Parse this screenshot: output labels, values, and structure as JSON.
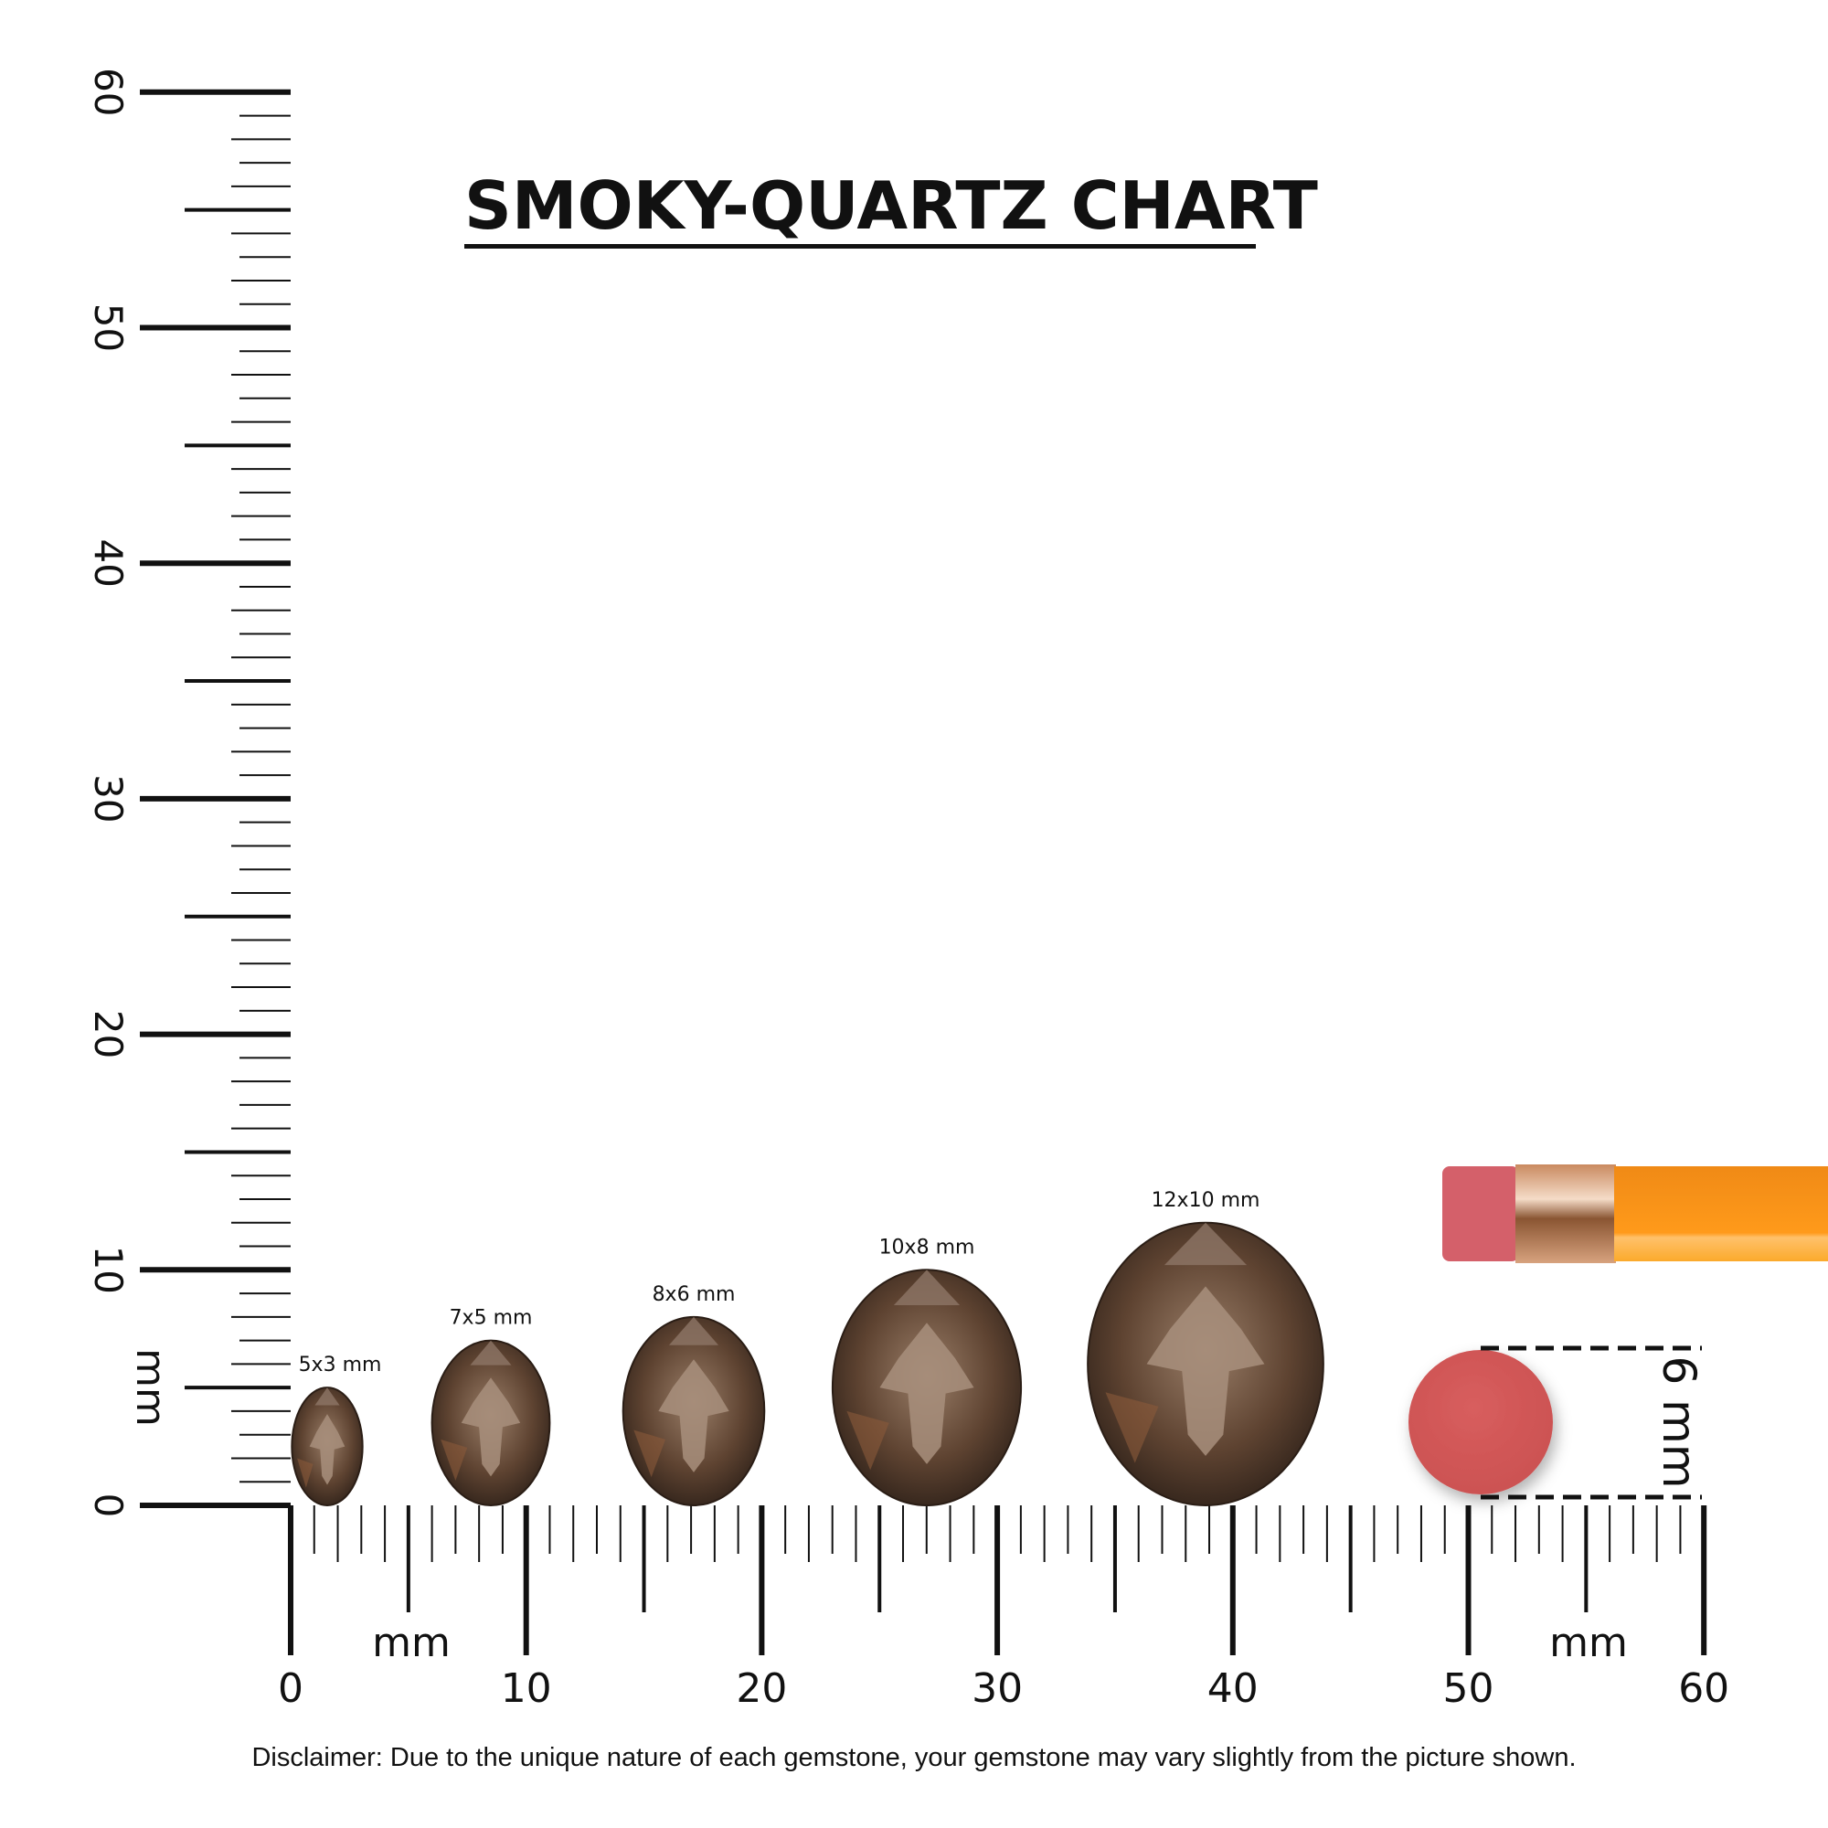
{
  "title": "SMOKY-QUARTZ CHART",
  "unit_label": "mm",
  "vertical_ruler": {
    "labels": [
      "0",
      "10",
      "20",
      "30",
      "40",
      "50",
      "60"
    ],
    "unit": "mm"
  },
  "horizontal_ruler": {
    "labels": [
      "0",
      "10",
      "20",
      "30",
      "40",
      "50",
      "60"
    ],
    "unit_left": "mm",
    "unit_right": "mm"
  },
  "gems": [
    {
      "label": "5x3 mm",
      "length_mm": 5,
      "width_mm": 3
    },
    {
      "label": "7x5 mm",
      "length_mm": 7,
      "width_mm": 5
    },
    {
      "label": "8x6 mm",
      "length_mm": 8,
      "width_mm": 6
    },
    {
      "label": "10x8 mm",
      "length_mm": 10,
      "width_mm": 8
    },
    {
      "label": "12x10 mm",
      "length_mm": 12,
      "width_mm": 10
    }
  ],
  "eraser": {
    "label": "6 mm",
    "diameter_mm": 6
  },
  "disclaimer": "Disclaimer: Due to the unique nature of each gemstone, your gemstone may vary slightly from the picture shown.",
  "colors": {
    "gem_dark": "#3a2a20",
    "gem_mid": "#6b4e3a",
    "gem_light": "#b39a86",
    "eraser": "#d45a5a",
    "pencil": "#f7941d",
    "ferrule": "#d9a27a"
  }
}
